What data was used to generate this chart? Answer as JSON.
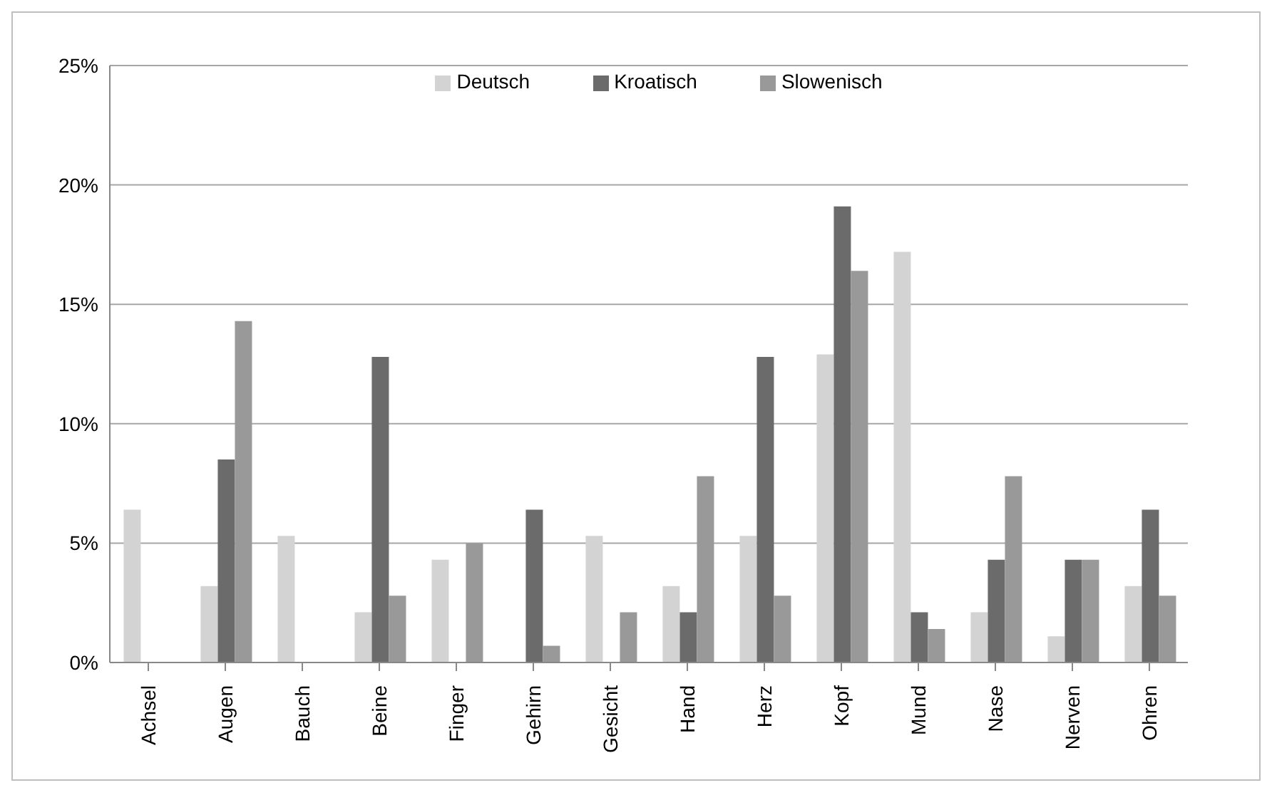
{
  "chart_data": {
    "type": "bar",
    "categories": [
      "Achsel",
      "Augen",
      "Bauch",
      "Beine",
      "Finger",
      "Gehirn",
      "Gesicht",
      "Hand",
      "Herz",
      "Kopf",
      "Mund",
      "Nase",
      "Nerven",
      "Ohren"
    ],
    "series": [
      {
        "name": "Deutsch",
        "color": "#d3d3d3",
        "values": [
          6.4,
          3.2,
          5.3,
          2.1,
          4.3,
          null,
          5.3,
          3.2,
          5.3,
          12.9,
          17.2,
          2.1,
          1.1,
          3.2
        ]
      },
      {
        "name": "Kroatisch",
        "color": "#6b6b6b",
        "values": [
          null,
          8.5,
          null,
          12.8,
          null,
          6.4,
          null,
          2.1,
          12.8,
          19.1,
          2.1,
          4.3,
          4.3,
          6.4
        ]
      },
      {
        "name": "Slowenisch",
        "color": "#999999",
        "values": [
          null,
          14.3,
          null,
          2.8,
          5.0,
          0.7,
          2.1,
          7.8,
          2.8,
          16.4,
          1.4,
          7.8,
          4.3,
          2.8
        ]
      }
    ],
    "ylim": [
      0,
      25
    ],
    "yticks": [
      {
        "value": 0,
        "label": "0%"
      },
      {
        "value": 5,
        "label": "5%"
      },
      {
        "value": 10,
        "label": "10%"
      },
      {
        "value": 15,
        "label": "15%"
      },
      {
        "value": 20,
        "label": "20%"
      },
      {
        "value": 25,
        "label": "25%"
      }
    ],
    "grid": "y",
    "legend": "top"
  }
}
